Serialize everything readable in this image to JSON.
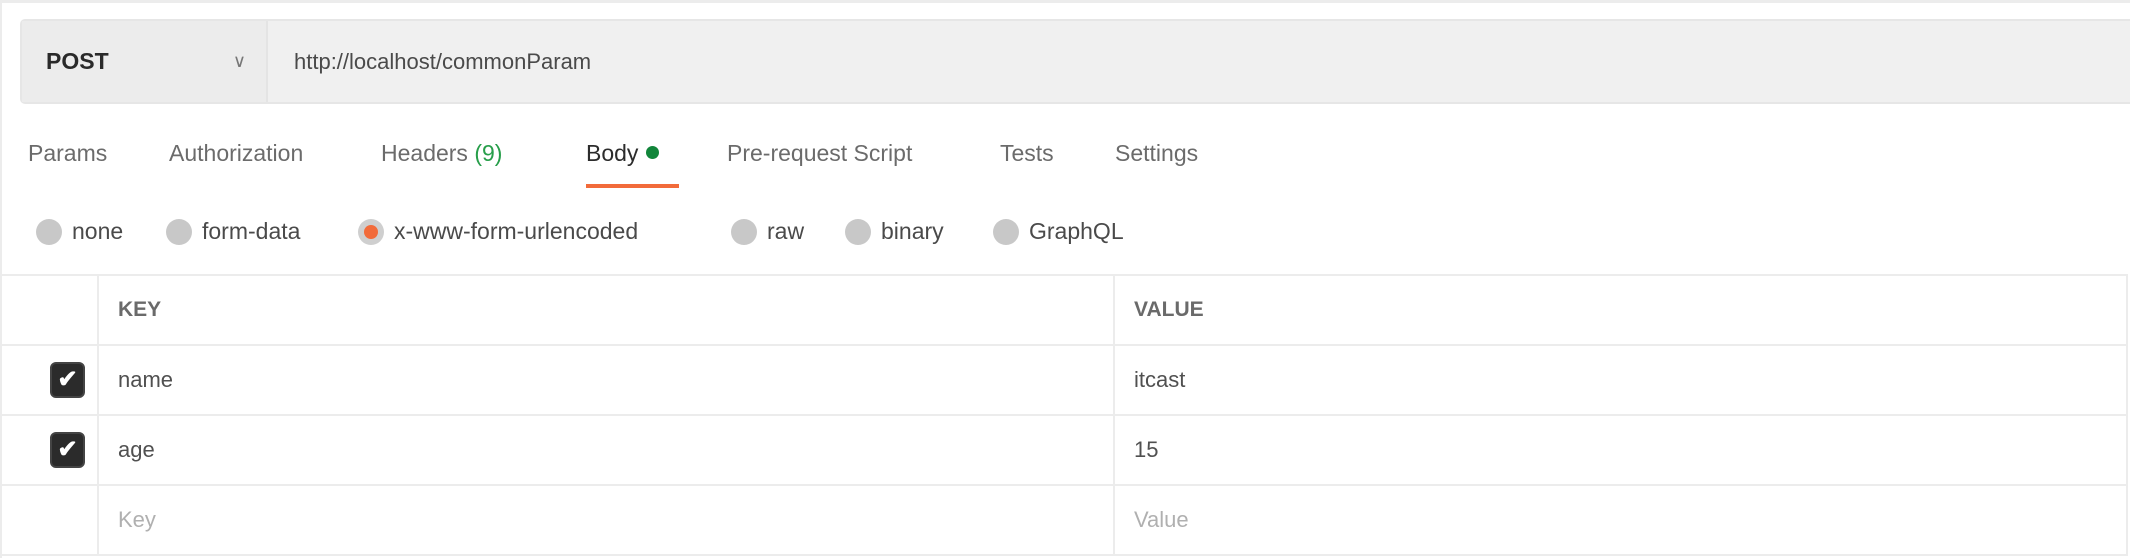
{
  "request": {
    "method": "POST",
    "url": "http://localhost/commonParam"
  },
  "tabs": [
    {
      "label": "Params"
    },
    {
      "label": "Authorization"
    },
    {
      "label": "Headers",
      "count": "(9)"
    },
    {
      "label": "Body",
      "active": true
    },
    {
      "label": "Pre-request Script"
    },
    {
      "label": "Tests"
    },
    {
      "label": "Settings"
    }
  ],
  "body_types": [
    {
      "label": "none"
    },
    {
      "label": "form-data"
    },
    {
      "label": "x-www-form-urlencoded",
      "selected": true
    },
    {
      "label": "raw"
    },
    {
      "label": "binary"
    },
    {
      "label": "GraphQL"
    }
  ],
  "table": {
    "headers": {
      "key": "KEY",
      "value": "VALUE"
    },
    "rows": [
      {
        "checked": true,
        "key": "name",
        "value": "itcast"
      },
      {
        "checked": true,
        "key": "age",
        "value": "15"
      }
    ],
    "placeholders": {
      "key": "Key",
      "value": "Value"
    }
  },
  "colors": {
    "accent": "#f26b3a",
    "body_dot": "#11853a",
    "count": "#279e4a"
  }
}
